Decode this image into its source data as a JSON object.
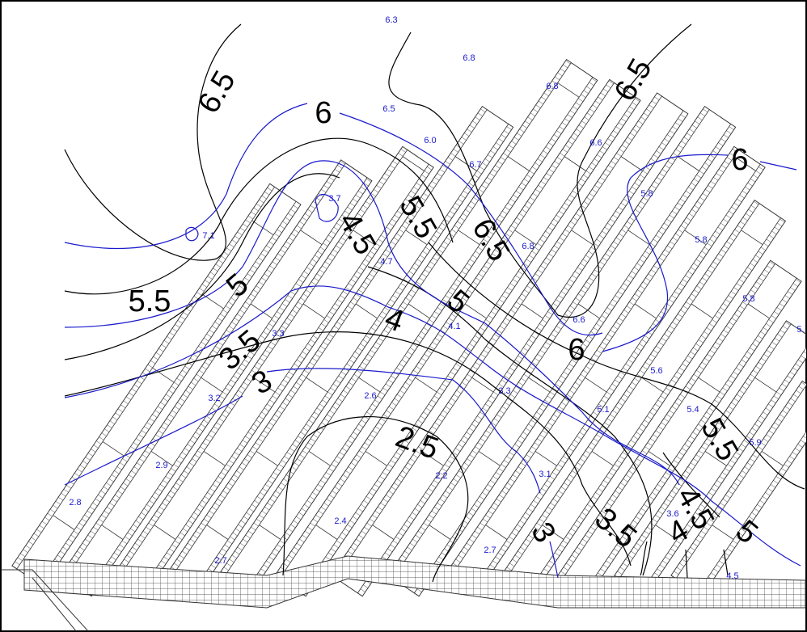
{
  "contour_labels": [
    "6.5",
    "6",
    "6.5",
    "6",
    "5.5",
    "5",
    "4.5",
    "5.5",
    "6.5",
    "5",
    "4",
    "3.5",
    "3",
    "6",
    "2.5",
    "5.5",
    "4.5",
    "3.5",
    "4",
    "5",
    "3"
  ],
  "spot_labels": [
    "6.3",
    "6.8",
    "6.8",
    "6.5",
    "6.0",
    "6.7",
    "6.6",
    "5.8",
    "5.8",
    "5.8",
    "5.",
    "3.7",
    "7.1",
    "6.8",
    "4.7",
    "6.6",
    "4.1",
    "3.3",
    "5.6",
    "3.2",
    "2.6",
    "3.3",
    "5.1",
    "5.4",
    "5.9",
    "2.9",
    "2.2",
    "3.1",
    "2.8",
    "2.4",
    "3.6",
    "2.7",
    "2.7",
    "4.5"
  ]
}
